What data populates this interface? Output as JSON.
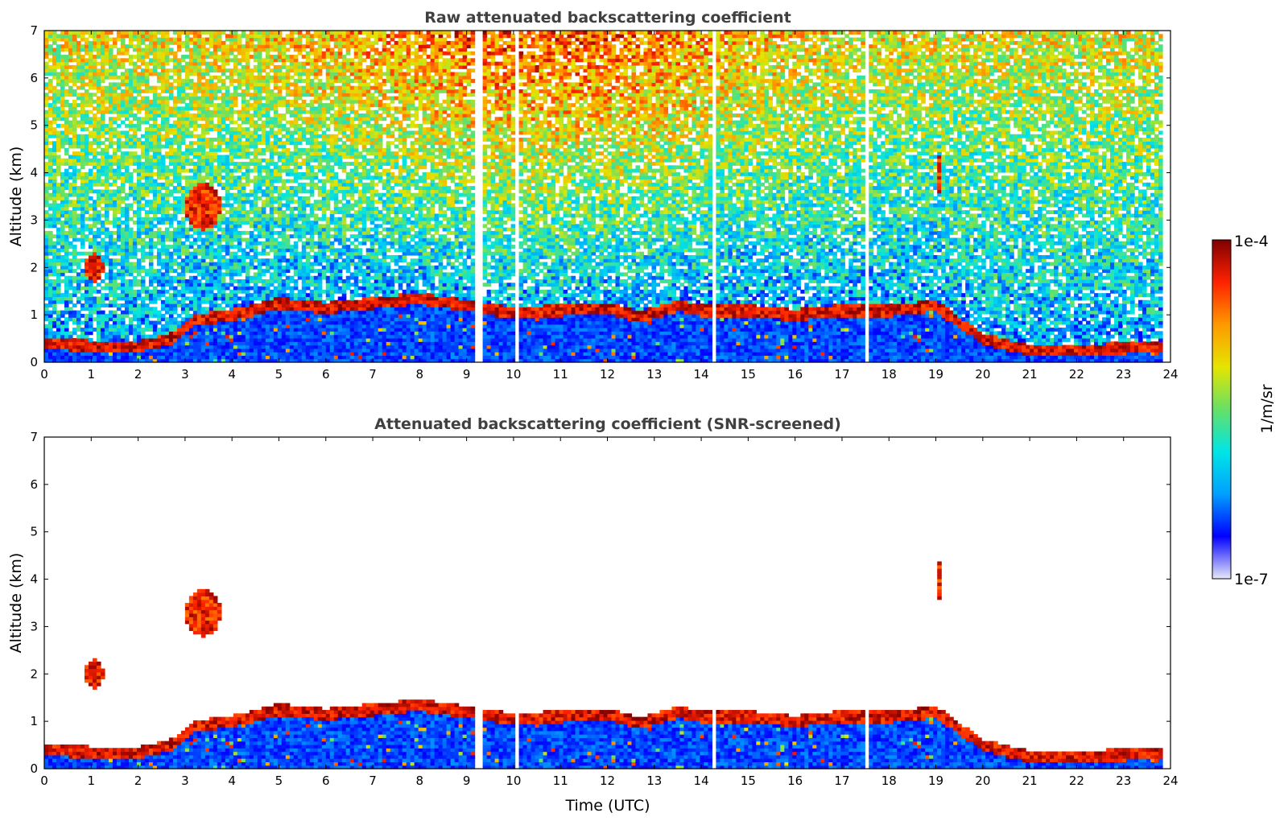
{
  "chart_data": [
    {
      "type": "heatmap",
      "title": "Raw attenuated backscattering coefficient",
      "xlabel": "",
      "ylabel": "Altitude (km)",
      "xlim": [
        0,
        24
      ],
      "ylim": [
        0,
        7
      ],
      "xticks": [
        "0",
        "1",
        "2",
        "3",
        "4",
        "5",
        "6",
        "7",
        "8",
        "9",
        "10",
        "11",
        "12",
        "13",
        "14",
        "15",
        "16",
        "17",
        "18",
        "19",
        "20",
        "21",
        "22",
        "23",
        "24"
      ],
      "yticks": [
        "0",
        "1",
        "2",
        "3",
        "4",
        "5",
        "6",
        "7"
      ],
      "screened": false,
      "features": {
        "boundary_layer_top_km": [
          [
            0,
            0.4
          ],
          [
            1,
            0.35
          ],
          [
            2,
            0.35
          ],
          [
            2.7,
            0.5
          ],
          [
            3.2,
            0.9
          ],
          [
            4,
            1.0
          ],
          [
            5,
            1.25
          ],
          [
            6,
            1.15
          ],
          [
            7,
            1.25
          ],
          [
            8,
            1.35
          ],
          [
            9,
            1.2
          ],
          [
            10,
            1.05
          ],
          [
            11,
            1.1
          ],
          [
            12,
            1.15
          ],
          [
            12.7,
            0.95
          ],
          [
            13.5,
            1.2
          ],
          [
            14,
            1.1
          ],
          [
            15,
            1.1
          ],
          [
            16,
            1.0
          ],
          [
            17,
            1.1
          ],
          [
            18,
            1.1
          ],
          [
            19,
            1.2
          ],
          [
            20,
            0.5
          ],
          [
            21,
            0.25
          ],
          [
            22,
            0.25
          ],
          [
            23,
            0.3
          ],
          [
            23.8,
            0.35
          ]
        ],
        "elevated_clouds": [
          {
            "x0": 0.85,
            "x1": 1.25,
            "y0": 1.7,
            "y1": 2.3
          },
          {
            "x0": 3.0,
            "x1": 3.75,
            "y0": 2.8,
            "y1": 3.8
          },
          {
            "x0": 19.05,
            "x1": 19.15,
            "y0": 3.5,
            "y1": 4.5
          }
        ],
        "data_gaps_utc": [
          9.25,
          9.3,
          10.05,
          14.25,
          17.5
        ],
        "data_end_utc": 23.85
      }
    },
    {
      "type": "heatmap",
      "title": "Attenuated backscattering coefficient (SNR-screened)",
      "xlabel": "Time (UTC)",
      "ylabel": "Altitude (km)",
      "xlim": [
        0,
        24
      ],
      "ylim": [
        0,
        7
      ],
      "xticks": [
        "0",
        "1",
        "2",
        "3",
        "4",
        "5",
        "6",
        "7",
        "8",
        "9",
        "10",
        "11",
        "12",
        "13",
        "14",
        "15",
        "16",
        "17",
        "18",
        "19",
        "20",
        "21",
        "22",
        "23",
        "24"
      ],
      "yticks": [
        "0",
        "1",
        "2",
        "3",
        "4",
        "5",
        "6",
        "7"
      ],
      "screened": true
    }
  ],
  "colorbar": {
    "min_label": "1e-7",
    "max_label": "1e-4",
    "units": "1/m/sr",
    "scale": "log",
    "colormap": [
      "#e8e8f8",
      "#0000ff",
      "#00a0ff",
      "#00e5e5",
      "#66e066",
      "#e5e500",
      "#ff9900",
      "#ff2200",
      "#800000"
    ]
  }
}
